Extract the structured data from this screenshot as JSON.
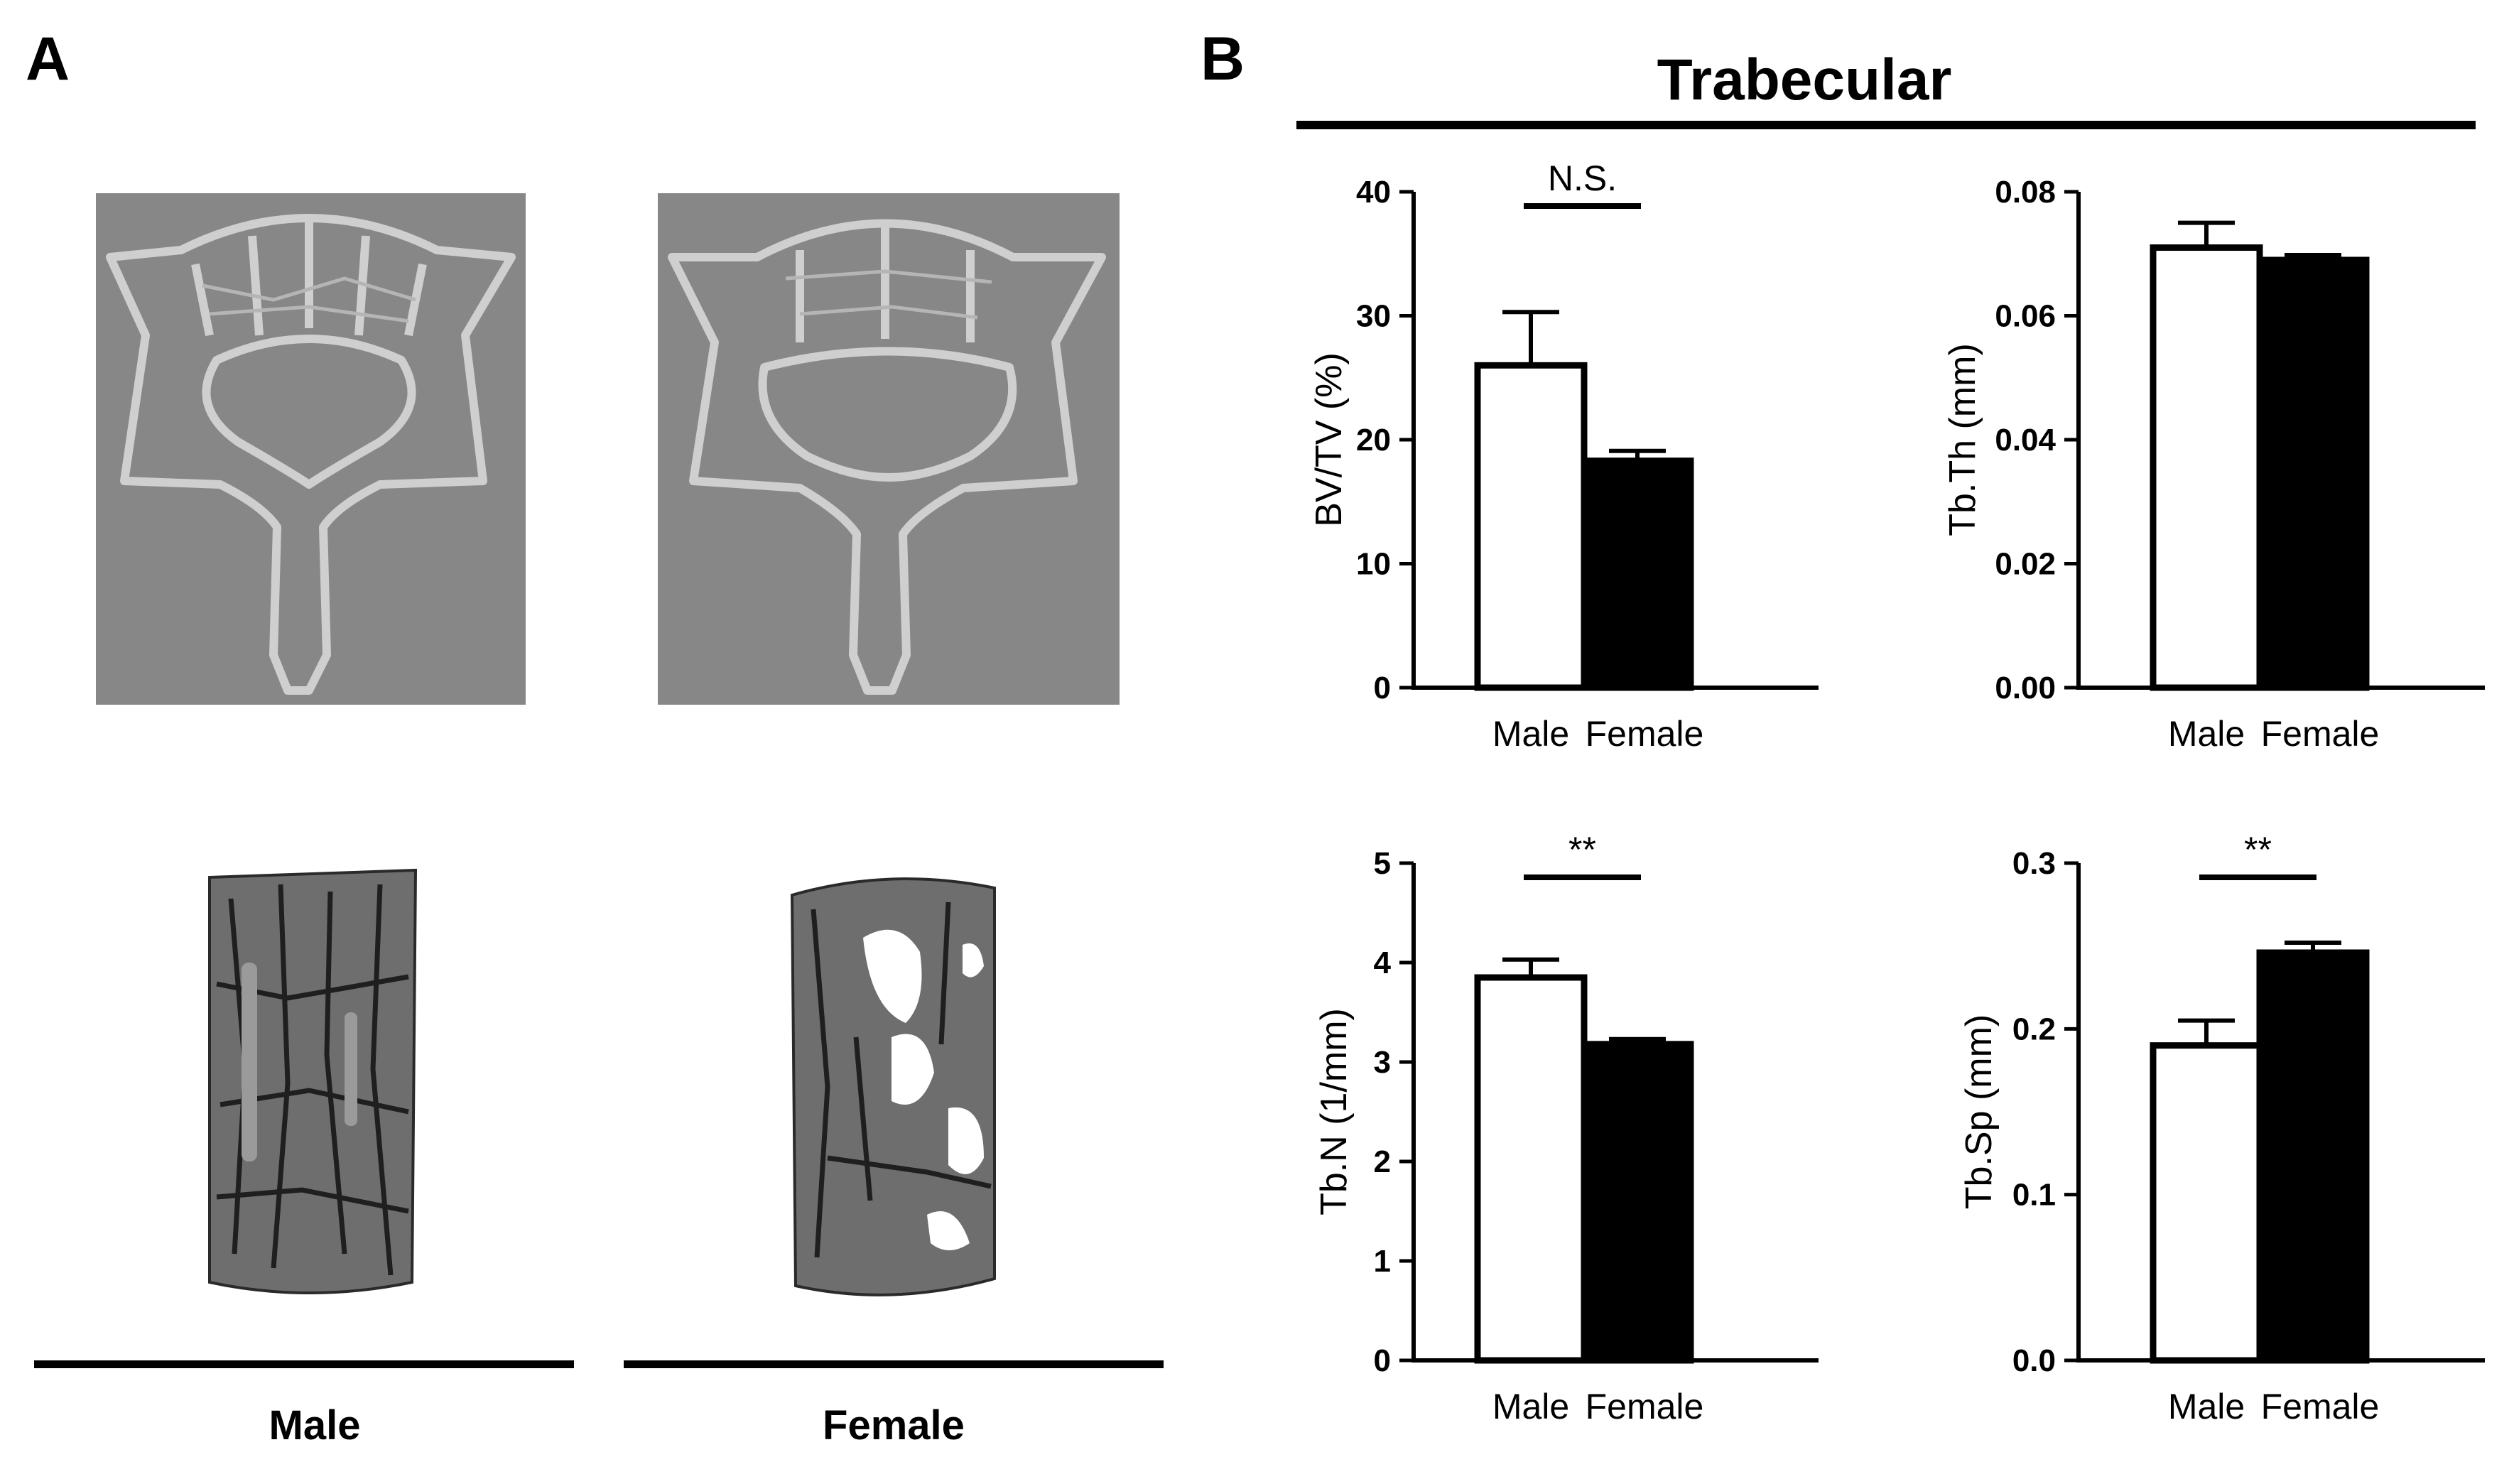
{
  "panel_a": {
    "letter": "A",
    "groups": [
      {
        "label": "Male"
      },
      {
        "label": "Female"
      }
    ]
  },
  "panel_b": {
    "letter": "B",
    "title": "Trabecular"
  },
  "colors": {
    "male_fill": "#ffffff",
    "female_fill": "#000000",
    "ct_background": "#878787",
    "bone_outline": "#c8c8c8",
    "volume_render": "#6e6e6e"
  },
  "chart_data": [
    {
      "type": "bar",
      "categories": [
        "Male",
        "Female"
      ],
      "values": [
        26.0,
        18.3
      ],
      "errors": [
        4.3,
        0.8
      ],
      "ylabel": "BV/TV (%)",
      "ylim": [
        0,
        40
      ],
      "yticks": [
        "0",
        "10",
        "20",
        "30",
        "40"
      ],
      "significance": "N.S.",
      "grid": false
    },
    {
      "type": "bar",
      "categories": [
        "Male",
        "Female"
      ],
      "values": [
        0.071,
        0.069
      ],
      "errors": [
        0.004,
        0.0008
      ],
      "ylabel": "Tb.Th (mm)",
      "ylim": [
        0,
        0.08
      ],
      "yticks": [
        "0.00",
        "0.02",
        "0.04",
        "0.06",
        "0.08"
      ],
      "significance": "",
      "grid": false
    },
    {
      "type": "bar",
      "categories": [
        "Male",
        "Female"
      ],
      "values": [
        3.85,
        3.18
      ],
      "errors": [
        0.18,
        0.05
      ],
      "ylabel": "Tb.N (1/mm)",
      "ylim": [
        0,
        5
      ],
      "yticks": [
        "0",
        "1",
        "2",
        "3",
        "4",
        "5"
      ],
      "significance": "**",
      "grid": false
    },
    {
      "type": "bar",
      "categories": [
        "Male",
        "Female"
      ],
      "values": [
        0.19,
        0.246
      ],
      "errors": [
        0.015,
        0.006
      ],
      "ylabel": "Tb.Sp (mm)",
      "ylim": [
        0,
        0.3
      ],
      "yticks": [
        "0.0",
        "0.1",
        "0.2",
        "0.3"
      ],
      "significance": "**",
      "grid": false
    }
  ]
}
